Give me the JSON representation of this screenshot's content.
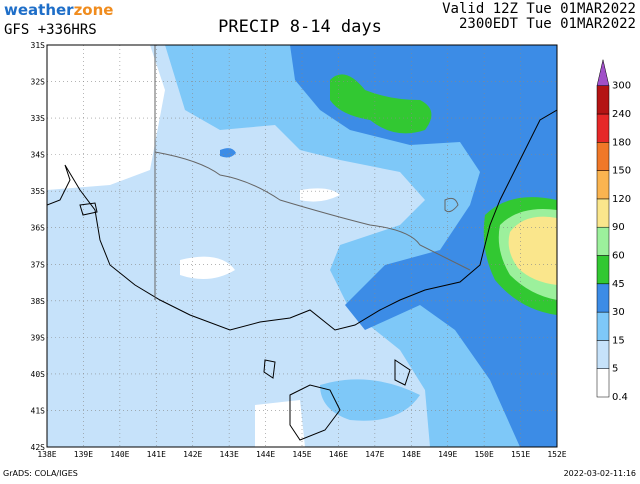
{
  "header": {
    "logo_main": "weather",
    "logo_accent": "zone",
    "model": "GFS +336HRS",
    "title": "PRECIP 8-14 days",
    "valid_utc": "Valid 12Z Tue 01MAR2022",
    "valid_local": "2300EDT Tue 01MAR2022"
  },
  "map": {
    "lat_labels": [
      "31S",
      "32S",
      "33S",
      "34S",
      "35S",
      "36S",
      "37S",
      "38S",
      "39S",
      "40S",
      "41S",
      "42S"
    ],
    "lon_labels": [
      "138E",
      "139E",
      "140E",
      "141E",
      "142E",
      "143E",
      "144E",
      "145E",
      "146E",
      "147E",
      "148E",
      "149E",
      "150E",
      "151E",
      "152E"
    ]
  },
  "colorbar": {
    "labels": [
      "0.4",
      "5",
      "15",
      "30",
      "45",
      "60",
      "90",
      "120",
      "150",
      "180",
      "240",
      "300"
    ],
    "colors": [
      "#ffffff",
      "#c6e2fa",
      "#7ec8f8",
      "#3c8ce6",
      "#32c832",
      "#9cf09c",
      "#fae68c",
      "#fab450",
      "#f07828",
      "#e62828",
      "#b41414",
      "#a050c8"
    ]
  },
  "footer": {
    "source": "GrADS: COLA/IGES",
    "timestamp": "2022-03-02-11:16"
  }
}
